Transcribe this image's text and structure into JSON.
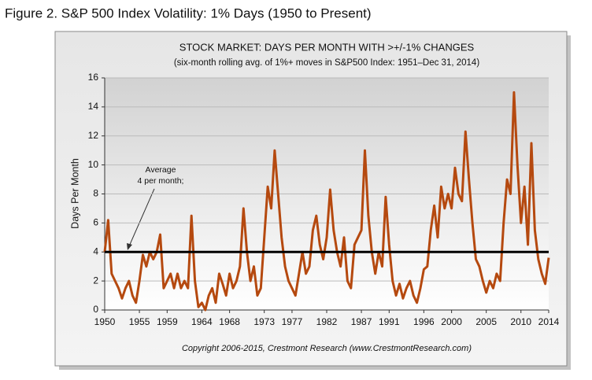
{
  "figure_caption": "Figure 2.  S&P 500 Index Volatility: 1% Days (1950 to Present)",
  "chart_data": {
    "type": "line",
    "title": "STOCK MARKET: DAYS PER MONTH WITH >+/-1% CHANGES",
    "subtitle": "(six-month rolling avg. of 1%+ moves in S&P500 Index: 1951–Dec 31, 2014)",
    "y_label": "Days Per Month",
    "annotation": [
      "Average",
      "4 per month;"
    ],
    "average_line": 4,
    "copyright": "Copyright 2006-2015, Crestmont Research (www.CrestmontResearch.com)",
    "color": "#b5490f",
    "grid": true,
    "xlim": [
      1950,
      2014
    ],
    "ylim": [
      0,
      16
    ],
    "xticks": [
      1950,
      1955,
      1959,
      1964,
      1968,
      1973,
      1977,
      1982,
      1987,
      1991,
      1996,
      2000,
      2005,
      2010,
      2014
    ],
    "yticks": [
      0,
      2,
      4,
      6,
      8,
      10,
      12,
      14,
      16
    ],
    "x": [
      1950,
      1950.5,
      1951,
      1951.5,
      1952,
      1952.5,
      1953,
      1953.5,
      1954,
      1954.5,
      1955,
      1955.5,
      1956,
      1956.5,
      1957,
      1957.5,
      1958,
      1958.5,
      1959,
      1959.5,
      1960,
      1960.5,
      1961,
      1961.5,
      1962,
      1962.5,
      1963,
      1963.5,
      1964,
      1964.5,
      1965,
      1965.5,
      1966,
      1966.5,
      1967,
      1967.5,
      1968,
      1968.5,
      1969,
      1969.5,
      1970,
      1970.5,
      1971,
      1971.5,
      1972,
      1972.5,
      1973,
      1973.5,
      1974,
      1974.5,
      1975,
      1975.5,
      1976,
      1976.5,
      1977,
      1977.5,
      1978,
      1978.5,
      1979,
      1979.5,
      1980,
      1980.5,
      1981,
      1981.5,
      1982,
      1982.5,
      1983,
      1983.5,
      1984,
      1984.5,
      1985,
      1985.5,
      1986,
      1986.5,
      1987,
      1987.5,
      1988,
      1988.5,
      1989,
      1989.5,
      1990,
      1990.5,
      1991,
      1991.5,
      1992,
      1992.5,
      1993,
      1993.5,
      1994,
      1994.5,
      1995,
      1995.5,
      1996,
      1996.5,
      1997,
      1997.5,
      1998,
      1998.5,
      1999,
      1999.5,
      2000,
      2000.5,
      2001,
      2001.5,
      2002,
      2002.5,
      2003,
      2003.5,
      2004,
      2004.5,
      2005,
      2005.5,
      2006,
      2006.5,
      2007,
      2007.5,
      2008,
      2008.5,
      2009,
      2009.5,
      2010,
      2010.5,
      2011,
      2011.5,
      2012,
      2012.5,
      2013,
      2013.5,
      2014
    ],
    "values": [
      4,
      6.2,
      2.5,
      2,
      1.5,
      0.8,
      1.5,
      2,
      1,
      0.5,
      2,
      3.8,
      3,
      4,
      3.5,
      4,
      5.2,
      1.5,
      2,
      2.5,
      1.5,
      2.5,
      1.5,
      2,
      1.5,
      6.5,
      2,
      0.2,
      0.5,
      0,
      1,
      1.5,
      0.5,
      2.5,
      1.8,
      1,
      2.5,
      1.5,
      2,
      3,
      7,
      4,
      2,
      3,
      1,
      1.5,
      5,
      8.5,
      7,
      11,
      8,
      5,
      3,
      2,
      1.5,
      1,
      2.5,
      4,
      2.5,
      3,
      5.5,
      6.5,
      4.5,
      3.5,
      5,
      8.3,
      5.5,
      4,
      3,
      5,
      2,
      1.5,
      4.5,
      5,
      5.5,
      11,
      6.5,
      4,
      2.5,
      4,
      3,
      7.8,
      4.5,
      2,
      1,
      1.8,
      0.8,
      1.5,
      2,
      1,
      0.5,
      1.5,
      2.8,
      3,
      5.5,
      7.2,
      5,
      8.5,
      7,
      8,
      7,
      9.8,
      8,
      7.5,
      12.3,
      9,
      6,
      3.5,
      3,
      2,
      1.2,
      2,
      1.5,
      2.5,
      2,
      6,
      9,
      8,
      15,
      10,
      6,
      8.5,
      4.5,
      11.5,
      5.5,
      3.5,
      2.5,
      1.8,
      3.6
    ]
  }
}
